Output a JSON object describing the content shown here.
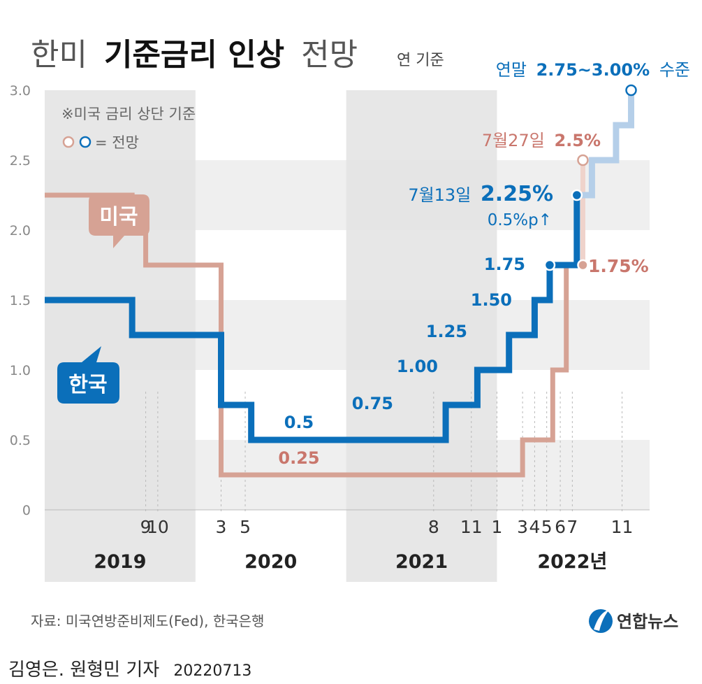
{
  "title": {
    "light_prefix": "한미",
    "bold": "기준금리 인상",
    "light_suffix": "전망"
  },
  "unit_note": "연 기준",
  "notes": {
    "basis": "※미국 금리 상단 기준",
    "forecast_legend": "= 전망"
  },
  "colors": {
    "korea": "#0b6fba",
    "korea_forecast": "#b5cfe9",
    "us": "#d6a294",
    "us_forecast": "#efd3cb",
    "us_text": "#c9766c",
    "grid_band": "#efefef",
    "year_band": "#e3e3e3"
  },
  "chart_data": {
    "type": "line",
    "step": true,
    "ylim": [
      0,
      3.0
    ],
    "yticks": [
      "0",
      "0.5",
      "1.0",
      "1.5",
      "2.0",
      "2.5",
      "3.0"
    ],
    "ytick_values": [
      0,
      0.5,
      1.0,
      1.5,
      2.0,
      2.5,
      3.0
    ],
    "month_ticks": [
      {
        "label": "9",
        "t": 2019.67
      },
      {
        "label": "10",
        "t": 2019.75
      },
      {
        "label": "3",
        "t": 2020.17
      },
      {
        "label": "5",
        "t": 2020.33
      },
      {
        "label": "8",
        "t": 2021.58
      },
      {
        "label": "11",
        "t": 2021.83
      },
      {
        "label": "1",
        "t": 2022.0
      },
      {
        "label": "3",
        "t": 2022.17
      },
      {
        "label": "4",
        "t": 2022.25
      },
      {
        "label": "5",
        "t": 2022.33
      },
      {
        "label": "6",
        "t": 2022.42
      },
      {
        "label": "7",
        "t": 2022.5
      },
      {
        "label": "11",
        "t": 2022.83
      }
    ],
    "years": [
      {
        "label": "2019",
        "t": 2019.5,
        "shaded": true
      },
      {
        "label": "2020",
        "t": 2020.5,
        "shaded": false
      },
      {
        "label": "2021",
        "t": 2021.5,
        "shaded": true
      },
      {
        "label": "2022년",
        "t": 2022.5,
        "shaded": false
      }
    ],
    "series": [
      {
        "name": "미국",
        "points": [
          {
            "t": 2019.0,
            "v": 2.25
          },
          {
            "t": 2019.58,
            "v": 2.0
          },
          {
            "t": 2019.67,
            "v": 1.75
          },
          {
            "t": 2020.17,
            "v": 0.25
          },
          {
            "t": 2022.17,
            "v": 0.5
          },
          {
            "t": 2022.37,
            "v": 1.0
          },
          {
            "t": 2022.46,
            "v": 1.75
          }
        ],
        "forecast": [
          {
            "t": 2022.57,
            "v": 1.75
          },
          {
            "t": 2022.57,
            "v": 2.5
          }
        ]
      },
      {
        "name": "한국",
        "points": [
          {
            "t": 2019.0,
            "v": 1.5
          },
          {
            "t": 2019.58,
            "v": 1.25
          },
          {
            "t": 2020.17,
            "v": 0.75
          },
          {
            "t": 2020.37,
            "v": 0.5
          },
          {
            "t": 2021.66,
            "v": 0.75
          },
          {
            "t": 2021.87,
            "v": 1.0
          },
          {
            "t": 2022.08,
            "v": 1.25
          },
          {
            "t": 2022.25,
            "v": 1.5
          },
          {
            "t": 2022.35,
            "v": 1.75
          },
          {
            "t": 2022.53,
            "v": 2.25
          }
        ],
        "forecast": [
          {
            "t": 2022.53,
            "v": 2.25
          },
          {
            "t": 2022.63,
            "v": 2.5
          },
          {
            "t": 2022.79,
            "v": 2.75
          },
          {
            "t": 2022.89,
            "v": 3.0
          }
        ]
      }
    ],
    "annotations": {
      "us_label": "미국",
      "kr_label": "한국",
      "us_low": "0.25",
      "kr_low": "0.5",
      "kr_steps": [
        "0.75",
        "1.00",
        "1.25",
        "1.50",
        "1.75"
      ],
      "jul13_prefix": "7월13일",
      "jul13_value": "2.25%",
      "jul13_delta": "0.5%p↑",
      "jul27_prefix": "7월27일",
      "jul27_value": "2.5%",
      "us_175": "1.75%",
      "year_end_prefix": "연말",
      "year_end_value": "2.75~3.00%",
      "year_end_suffix": "수준"
    }
  },
  "source": "자료: 미국연방준비제도(Fed), 한국은행",
  "logo": "연합뉴스",
  "byline": {
    "reporters": "김영은. 원형민 기자",
    "date": "20220713"
  }
}
